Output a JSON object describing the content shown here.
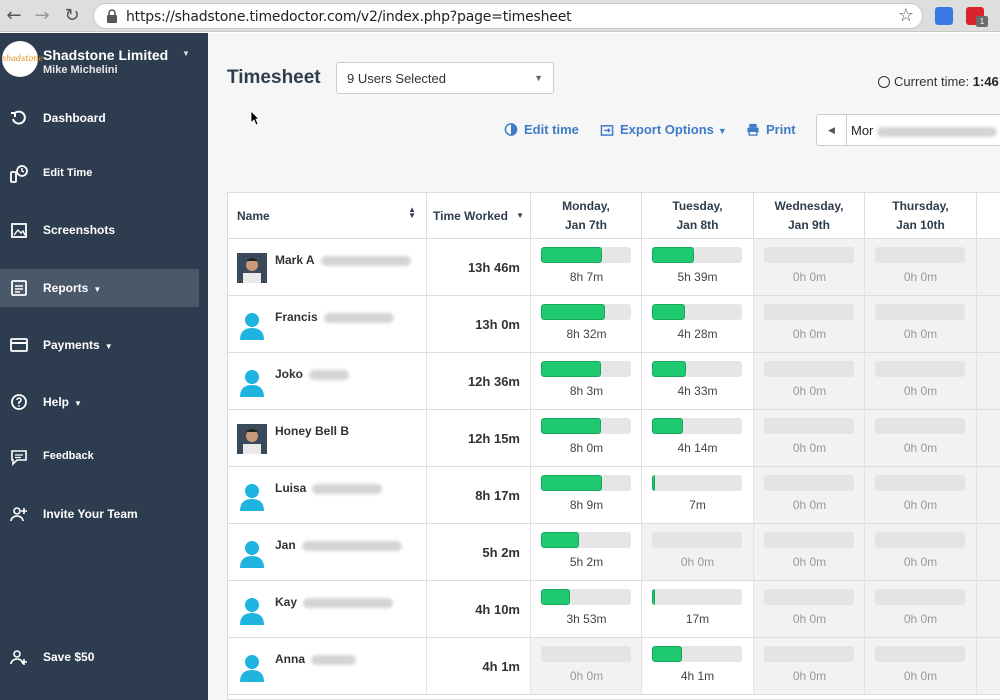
{
  "browser": {
    "url": "https://shadstone.timedoctor.com/v2/index.php?page=timesheet"
  },
  "sidebar": {
    "logo_text": "shadstone",
    "org_name": "Shadstone Limited",
    "user_name": "Mike Michelini",
    "items": [
      {
        "label": "Dashboard",
        "icon": "dashboard-icon",
        "caret": ""
      },
      {
        "label": "Edit Time",
        "icon": "edit-time-icon",
        "caret": ""
      },
      {
        "label": "Screenshots",
        "icon": "screenshots-icon",
        "caret": ""
      },
      {
        "label": "Reports",
        "icon": "reports-icon",
        "caret": "▼"
      },
      {
        "label": "Payments",
        "icon": "payments-icon",
        "caret": "▼"
      },
      {
        "label": "Help",
        "icon": "help-icon",
        "caret": "▼"
      },
      {
        "label": "Feedback",
        "icon": "feedback-icon",
        "caret": ""
      },
      {
        "label": "Invite Your Team",
        "icon": "invite-user-icon",
        "caret": ""
      },
      {
        "label": "Save $50",
        "icon": "save-user-icon",
        "caret": ""
      }
    ]
  },
  "header": {
    "title": "Timesheet",
    "users_selected": "9 Users Selected",
    "current_time_label": "Current time:",
    "current_time_value": "1:46",
    "edit_time": "Edit time",
    "export_options": "Export Options",
    "print": "Print",
    "date_range_visible": "Mor"
  },
  "table": {
    "columns": {
      "name": "Name",
      "time_worked": "Time Worked",
      "days": [
        {
          "line1": "Monday,",
          "line2": "Jan 7th"
        },
        {
          "line1": "Tuesday,",
          "line2": "Jan 8th"
        },
        {
          "line1": "Wednesday,",
          "line2": "Jan 9th"
        },
        {
          "line1": "Thursday,",
          "line2": "Jan 10th"
        }
      ]
    },
    "rows": [
      {
        "name": "Mark A",
        "worked": "13h 46m",
        "photo": true,
        "days": [
          {
            "label": "8h 7m",
            "fill": 0.68
          },
          {
            "label": "5h 39m",
            "fill": 0.47
          },
          {
            "label": "0h 0m",
            "fill": 0
          },
          {
            "label": "0h 0m",
            "fill": 0
          }
        ]
      },
      {
        "name": "Francis",
        "worked": "13h 0m",
        "photo": false,
        "days": [
          {
            "label": "8h 32m",
            "fill": 0.71
          },
          {
            "label": "4h 28m",
            "fill": 0.37
          },
          {
            "label": "0h 0m",
            "fill": 0
          },
          {
            "label": "0h 0m",
            "fill": 0
          }
        ]
      },
      {
        "name": "Joko",
        "worked": "12h 36m",
        "photo": false,
        "days": [
          {
            "label": "8h 3m",
            "fill": 0.67
          },
          {
            "label": "4h 33m",
            "fill": 0.38
          },
          {
            "label": "0h 0m",
            "fill": 0
          },
          {
            "label": "0h 0m",
            "fill": 0
          }
        ]
      },
      {
        "name": "Honey Bell B",
        "worked": "12h 15m",
        "photo": true,
        "days": [
          {
            "label": "8h 0m",
            "fill": 0.67
          },
          {
            "label": "4h 14m",
            "fill": 0.35
          },
          {
            "label": "0h 0m",
            "fill": 0
          },
          {
            "label": "0h 0m",
            "fill": 0
          }
        ]
      },
      {
        "name": "Luisa",
        "worked": "8h 17m",
        "photo": false,
        "days": [
          {
            "label": "8h 9m",
            "fill": 0.68
          },
          {
            "label": "7m",
            "fill": 0.01
          },
          {
            "label": "0h 0m",
            "fill": 0
          },
          {
            "label": "0h 0m",
            "fill": 0
          }
        ]
      },
      {
        "name": "Jan",
        "worked": "5h 2m",
        "photo": false,
        "days": [
          {
            "label": "5h 2m",
            "fill": 0.42
          },
          {
            "label": "0h 0m",
            "fill": 0
          },
          {
            "label": "0h 0m",
            "fill": 0
          },
          {
            "label": "0h 0m",
            "fill": 0
          }
        ]
      },
      {
        "name": "Kay",
        "worked": "4h 10m",
        "photo": false,
        "days": [
          {
            "label": "3h 53m",
            "fill": 0.32
          },
          {
            "label": "17m",
            "fill": 0.02
          },
          {
            "label": "0h 0m",
            "fill": 0
          },
          {
            "label": "0h 0m",
            "fill": 0
          }
        ]
      },
      {
        "name": "Anna",
        "worked": "4h 1m",
        "photo": false,
        "days": [
          {
            "label": "0h 0m",
            "fill": 0
          },
          {
            "label": "4h 1m",
            "fill": 0.33
          },
          {
            "label": "0h 0m",
            "fill": 0
          },
          {
            "label": "0h 0m",
            "fill": 0
          }
        ]
      }
    ]
  },
  "colors": {
    "sidebar_bg": "#2d3c4f",
    "accent_blue": "#3d7cc9",
    "bar_green": "#1ec970"
  }
}
